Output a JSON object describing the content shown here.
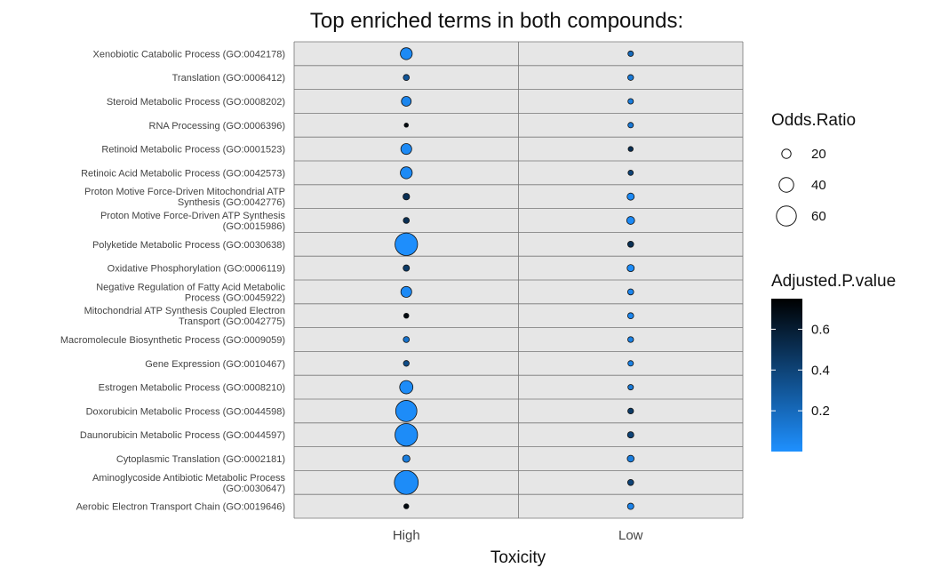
{
  "chart_data": {
    "type": "scatter",
    "title": "Top enriched terms in both compounds:",
    "xlabel": "Toxicity",
    "x_categories": [
      "High",
      "Low"
    ],
    "y_categories": [
      "Xenobiotic Catabolic Process (GO:0042178)",
      "Translation (GO:0006412)",
      "Steroid Metabolic Process (GO:0008202)",
      "RNA Processing (GO:0006396)",
      "Retinoid Metabolic Process (GO:0001523)",
      "Retinoic Acid Metabolic Process (GO:0042573)",
      "Proton Motive Force-Driven Mitochondrial ATP\nSynthesis (GO:0042776)",
      "Proton Motive Force-Driven ATP Synthesis\n(GO:0015986)",
      "Polyketide Metabolic Process (GO:0030638)",
      "Oxidative Phosphorylation (GO:0006119)",
      "Negative Regulation of Fatty Acid Metabolic\nProcess (GO:0045922)",
      "Mitochondrial ATP Synthesis Coupled Electron\nTransport (GO:0042775)",
      "Macromolecule Biosynthetic Process (GO:0009059)",
      "Gene Expression (GO:0010467)",
      "Estrogen Metabolic Process (GO:0008210)",
      "Doxorubicin Metabolic Process (GO:0044598)",
      "Daunorubicin Metabolic Process (GO:0044597)",
      "Cytoplasmic Translation (GO:0002181)",
      "Aminoglycoside Antibiotic Metabolic Process\n(GO:0030647)",
      "Aerobic Electron Transport Chain (GO:0019646)"
    ],
    "series": [
      {
        "x": "High",
        "odds_ratio": [
          30,
          8,
          22,
          1,
          26,
          30,
          10,
          8,
          70,
          9,
          26,
          4,
          8,
          7,
          35,
          65,
          70,
          13,
          75,
          4
        ],
        "adjusted_p": [
          0.03,
          0.3,
          0.05,
          0.7,
          0.03,
          0.03,
          0.5,
          0.5,
          0.01,
          0.45,
          0.03,
          0.7,
          0.15,
          0.35,
          0.02,
          0.02,
          0.02,
          0.1,
          0.02,
          0.7
        ]
      },
      {
        "x": "Low",
        "odds_ratio": [
          6,
          7,
          6,
          6,
          4,
          5,
          12,
          15,
          8,
          12,
          8,
          8,
          7,
          6,
          6,
          7,
          9,
          11,
          8,
          9
        ],
        "adjusted_p": [
          0.2,
          0.12,
          0.1,
          0.12,
          0.5,
          0.4,
          0.03,
          0.03,
          0.5,
          0.02,
          0.05,
          0.05,
          0.08,
          0.08,
          0.12,
          0.45,
          0.4,
          0.1,
          0.4,
          0.06
        ]
      }
    ],
    "size_legend": {
      "title": "Odds.Ratio",
      "values": [
        20,
        40,
        60
      ]
    },
    "color_legend": {
      "title": "Adjusted.P.value",
      "ticks": [
        0.6,
        0.4,
        0.2
      ],
      "range": [
        0.0,
        0.75
      ],
      "low_color": "#1e90ff",
      "high_color": "#000000"
    },
    "panel_color": "#e6e6e6",
    "grid": true
  }
}
